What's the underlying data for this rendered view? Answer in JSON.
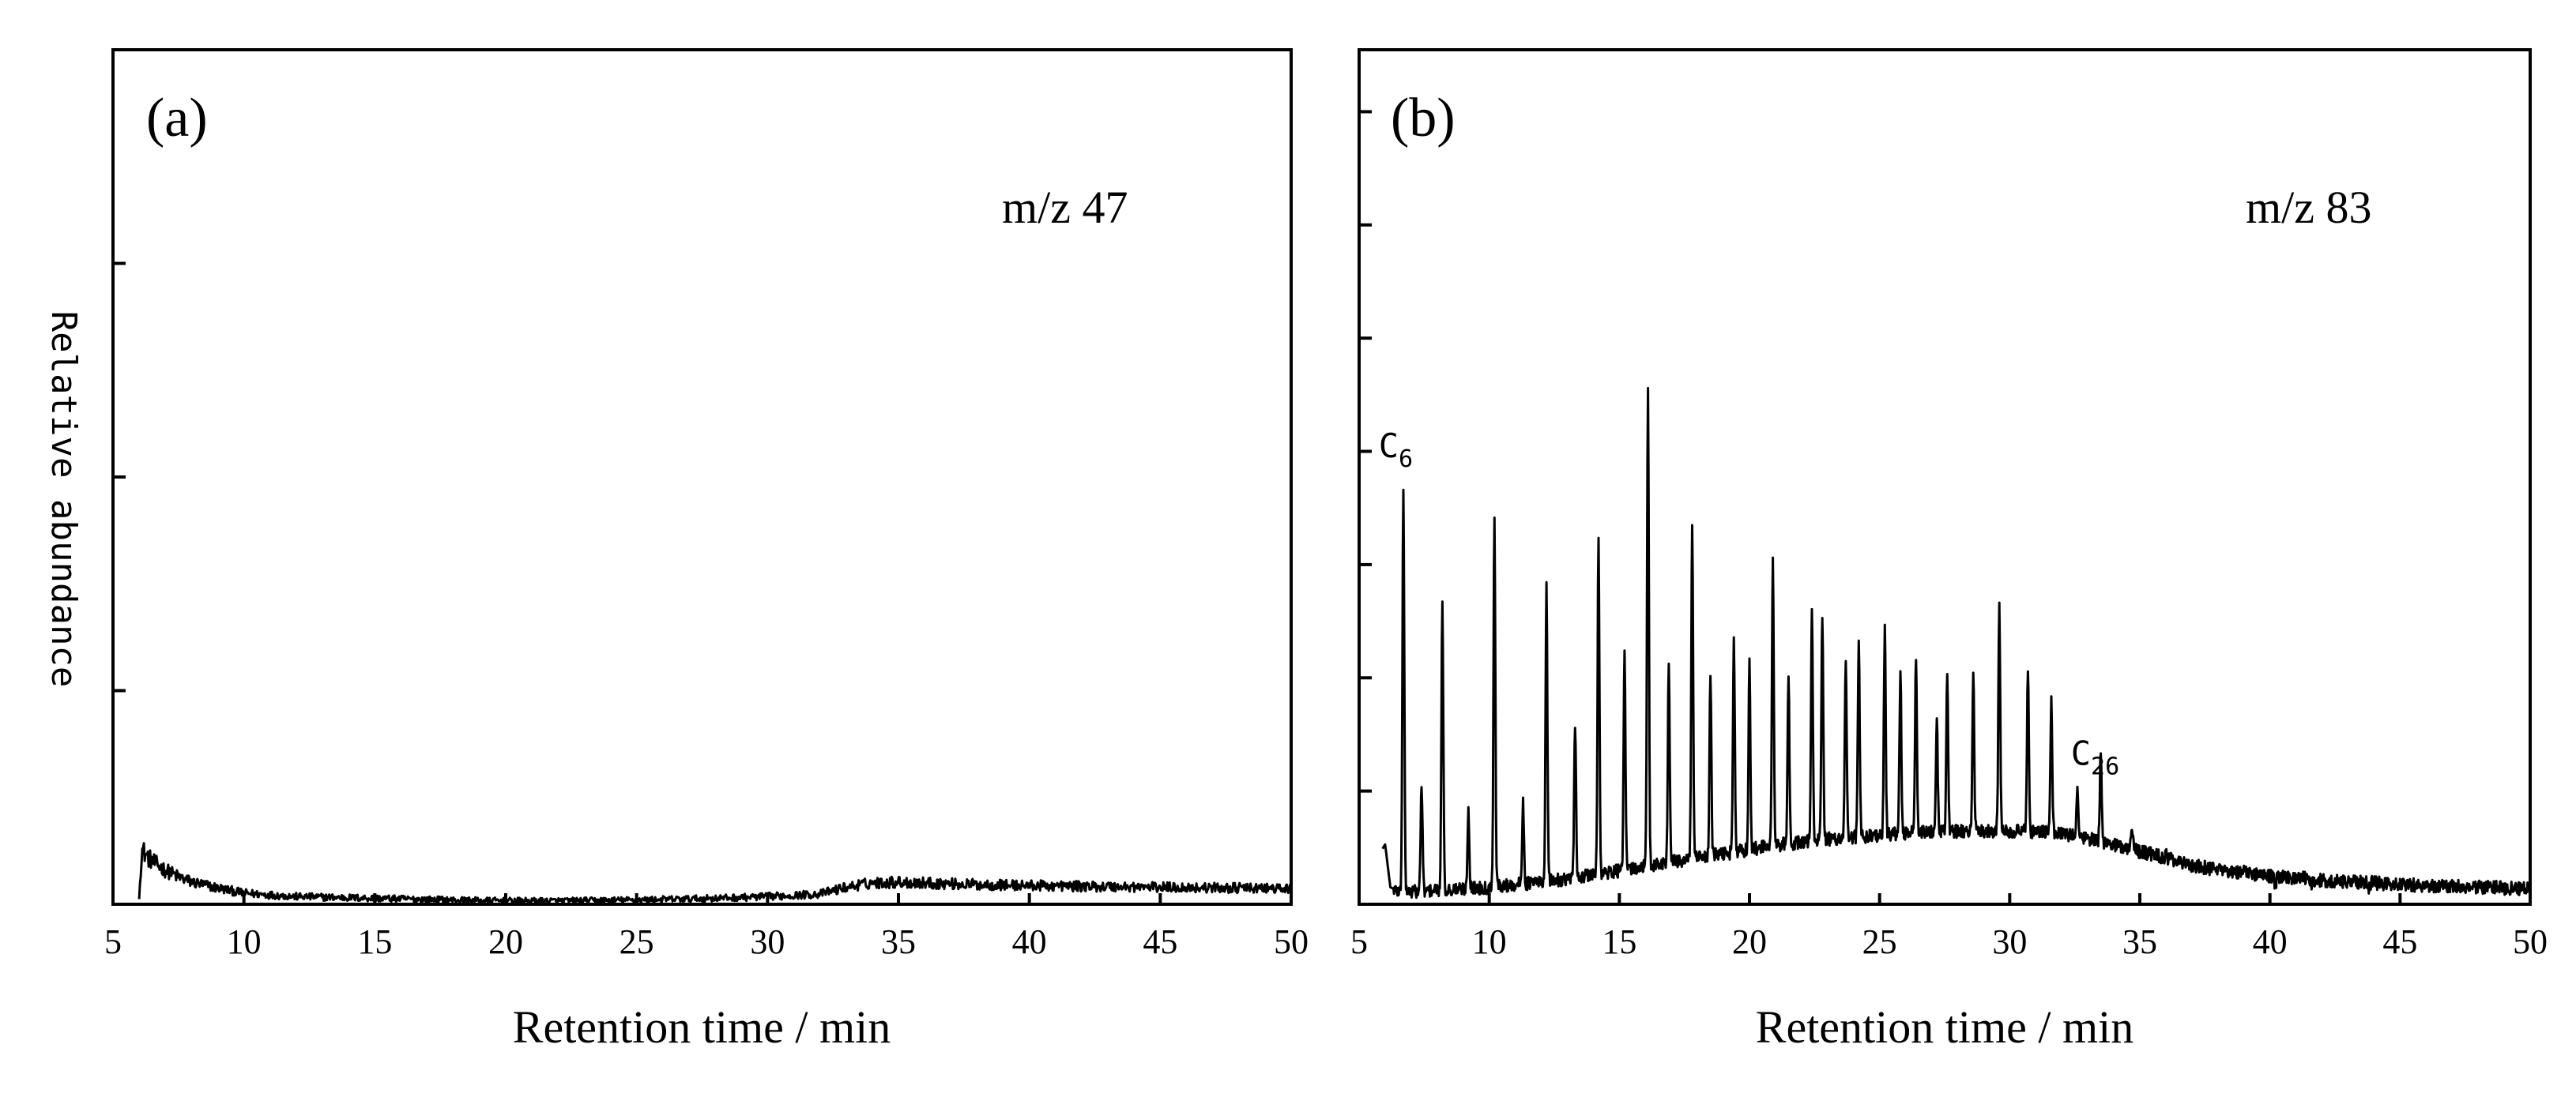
{
  "figure": {
    "ylabel": "Relative abundance"
  },
  "chart_data": [
    {
      "type": "line",
      "panel": "(a)",
      "annotation": "m/z 47",
      "xlabel": "Retention time / min",
      "ylabel": "Relative abundance",
      "xlim": [
        5,
        50
      ],
      "ylim": [
        0,
        100
      ],
      "xticks": [
        "5",
        "10",
        "15",
        "20",
        "25",
        "30",
        "35",
        "40",
        "45",
        "50"
      ],
      "grid": false,
      "series": [
        {
          "name": "m/z 47",
          "noise": 0.6,
          "x": [
            6.0,
            6.1,
            6.3,
            6.6,
            7.0,
            7.5,
            8.0,
            9.0,
            10.0,
            12.0,
            15.0,
            18.0,
            20.0,
            22.0,
            25.0,
            28.0,
            30.0,
            32.0,
            33.0,
            34.0,
            35.0,
            36.0,
            37.0,
            38.0,
            40.0,
            42.0,
            45.0,
            48.0,
            50.0
          ],
          "y": [
            0.6,
            6.5,
            5.6,
            4.8,
            4.0,
            3.2,
            2.6,
            1.9,
            1.3,
            0.9,
            0.7,
            0.5,
            0.4,
            0.4,
            0.5,
            0.7,
            0.9,
            1.2,
            2.0,
            2.5,
            2.6,
            2.5,
            2.4,
            2.3,
            2.2,
            2.1,
            2.0,
            1.9,
            1.8
          ]
        }
      ]
    },
    {
      "type": "line",
      "panel": "(b)",
      "annotation": "m/z 83",
      "xlabel": "Retention time / min",
      "xlim": [
        5,
        50
      ],
      "ylim": [
        0,
        100
      ],
      "xticks": [
        "5",
        "10",
        "15",
        "20",
        "25",
        "30",
        "35",
        "40",
        "45",
        "50"
      ],
      "grid": false,
      "peak_labels": [
        {
          "text": "C",
          "sub": "6",
          "x": 6.6,
          "y": 51
        },
        {
          "text": "C",
          "sub": "26",
          "x": 33.2,
          "y": 15
        }
      ],
      "series": [
        {
          "name": "m/z 83",
          "noise": 0.8,
          "baseline": {
            "x": [
              5.9,
              6.0,
              6.2,
              6.5,
              7.0,
              8.0,
              9.0,
              10.0,
              11.0,
              12.0,
              13.0,
              14.0,
              15.0,
              17.0,
              19.0,
              21.0,
              23.0,
              25.0,
              27.0,
              29.0,
              30.0,
              31.0,
              32.0,
              33.0,
              34.0,
              35.0,
              36.0,
              37.0,
              38.0,
              39.0,
              40.0,
              41.0,
              42.0,
              43.0,
              44.0,
              45.0,
              46.0,
              48.0,
              50.0
            ],
            "y": [
              6.5,
              7.0,
              2.0,
              1.5,
              1.5,
              1.6,
              1.8,
              2.0,
              2.3,
              2.6,
              3.0,
              3.4,
              3.9,
              4.9,
              5.9,
              6.9,
              7.6,
              8.1,
              8.5,
              8.6,
              8.6,
              8.5,
              8.2,
              7.7,
              7.0,
              6.2,
              5.4,
              4.6,
              4.0,
              3.6,
              3.3,
              3.1,
              2.8,
              2.6,
              2.5,
              2.3,
              2.2,
              2.0,
              1.8
            ]
          },
          "peaks": {
            "x": [
              6.7,
              7.4,
              8.2,
              9.2,
              10.2,
              11.3,
              12.2,
              13.3,
              14.2,
              15.2,
              16.1,
              16.9,
              17.8,
              18.5,
              19.4,
              20.0,
              20.9,
              21.5,
              22.4,
              22.8,
              23.7,
              24.2,
              25.2,
              25.8,
              26.4,
              27.2,
              27.6,
              28.6,
              29.6,
              30.7,
              31.6,
              32.6,
              33.5,
              34.7,
              36.0,
              37.4,
              39.0,
              40.2,
              41.6,
              43.8
            ],
            "y": [
              49,
              14,
              36,
              11,
              45,
              12,
              37,
              21,
              43,
              29,
              60,
              28,
              44,
              27,
              31,
              28,
              40,
              26,
              34,
              34,
              29,
              31,
              32,
              27,
              29,
              21,
              27,
              27,
              35,
              28,
              24,
              14,
              18,
              9,
              6,
              4,
              4,
              2,
              2,
              2
            ]
          }
        }
      ]
    }
  ]
}
